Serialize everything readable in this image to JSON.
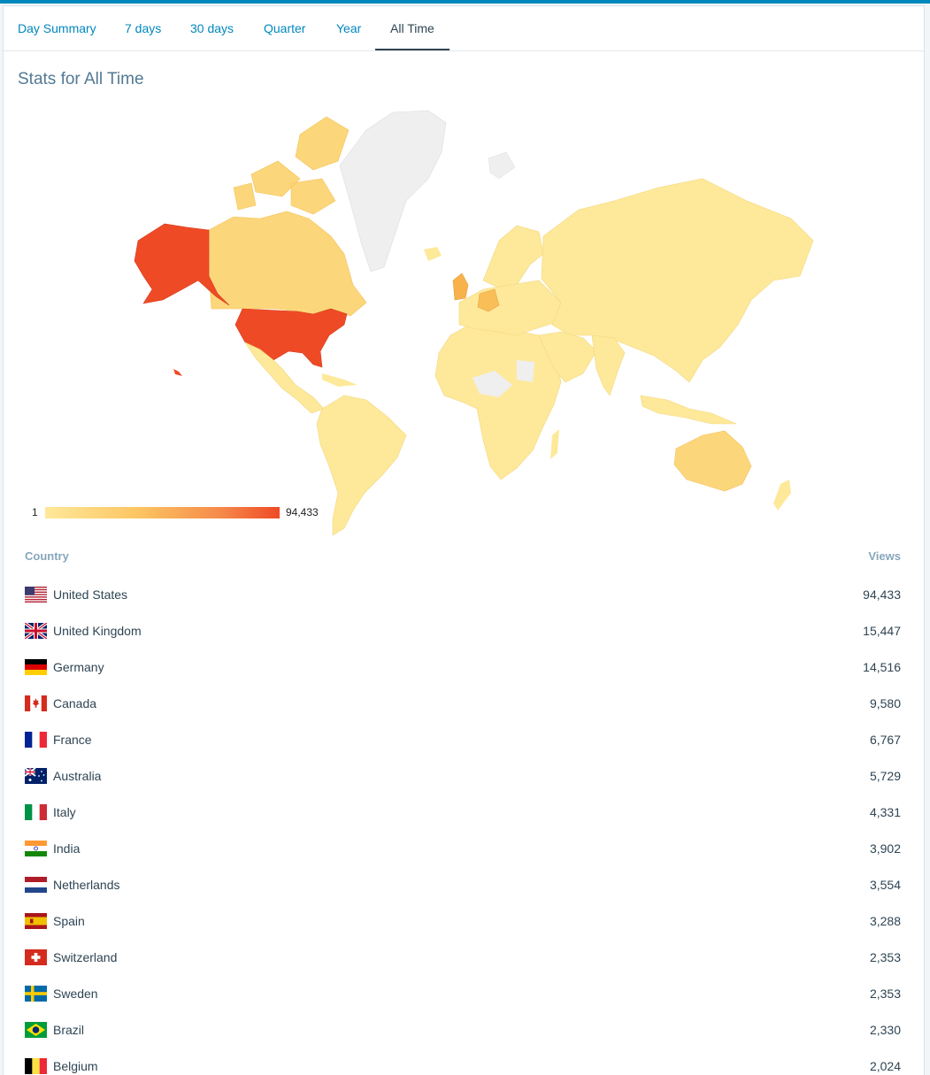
{
  "tabs": [
    {
      "label": "Day Summary"
    },
    {
      "label": "7 days"
    },
    {
      "label": "30 days"
    },
    {
      "label": "Quarter"
    },
    {
      "label": "Year"
    },
    {
      "label": "All Time",
      "active": true
    }
  ],
  "page_title": "Stats for All Time",
  "legend": {
    "min": "1",
    "max": "94,433",
    "low_color": "#ffe89a",
    "high_color": "#ef4a26"
  },
  "map": {
    "colors": {
      "highest": "#ef4a26",
      "high": "#fac85e",
      "medium": "#fcd67a",
      "low": "#fee99a",
      "none": "#efefef"
    }
  },
  "table": {
    "headers": {
      "country": "Country",
      "views": "Views"
    },
    "rows": [
      {
        "country": "United States",
        "views": "94,433",
        "flag": "us-flag-icon"
      },
      {
        "country": "United Kingdom",
        "views": "15,447",
        "flag": "uk-flag-icon"
      },
      {
        "country": "Germany",
        "views": "14,516",
        "flag": "germany-flag-icon"
      },
      {
        "country": "Canada",
        "views": "9,580",
        "flag": "canada-flag-icon"
      },
      {
        "country": "France",
        "views": "6,767",
        "flag": "france-flag-icon"
      },
      {
        "country": "Australia",
        "views": "5,729",
        "flag": "australia-flag-icon"
      },
      {
        "country": "Italy",
        "views": "4,331",
        "flag": "italy-flag-icon"
      },
      {
        "country": "India",
        "views": "3,902",
        "flag": "india-flag-icon"
      },
      {
        "country": "Netherlands",
        "views": "3,554",
        "flag": "netherlands-flag-icon"
      },
      {
        "country": "Spain",
        "views": "3,288",
        "flag": "spain-flag-icon"
      },
      {
        "country": "Switzerland",
        "views": "2,353",
        "flag": "switzerland-flag-icon"
      },
      {
        "country": "Sweden",
        "views": "2,353",
        "flag": "sweden-flag-icon"
      },
      {
        "country": "Brazil",
        "views": "2,330",
        "flag": "brazil-flag-icon"
      },
      {
        "country": "Belgium",
        "views": "2,024",
        "flag": "belgium-flag-icon"
      }
    ]
  }
}
